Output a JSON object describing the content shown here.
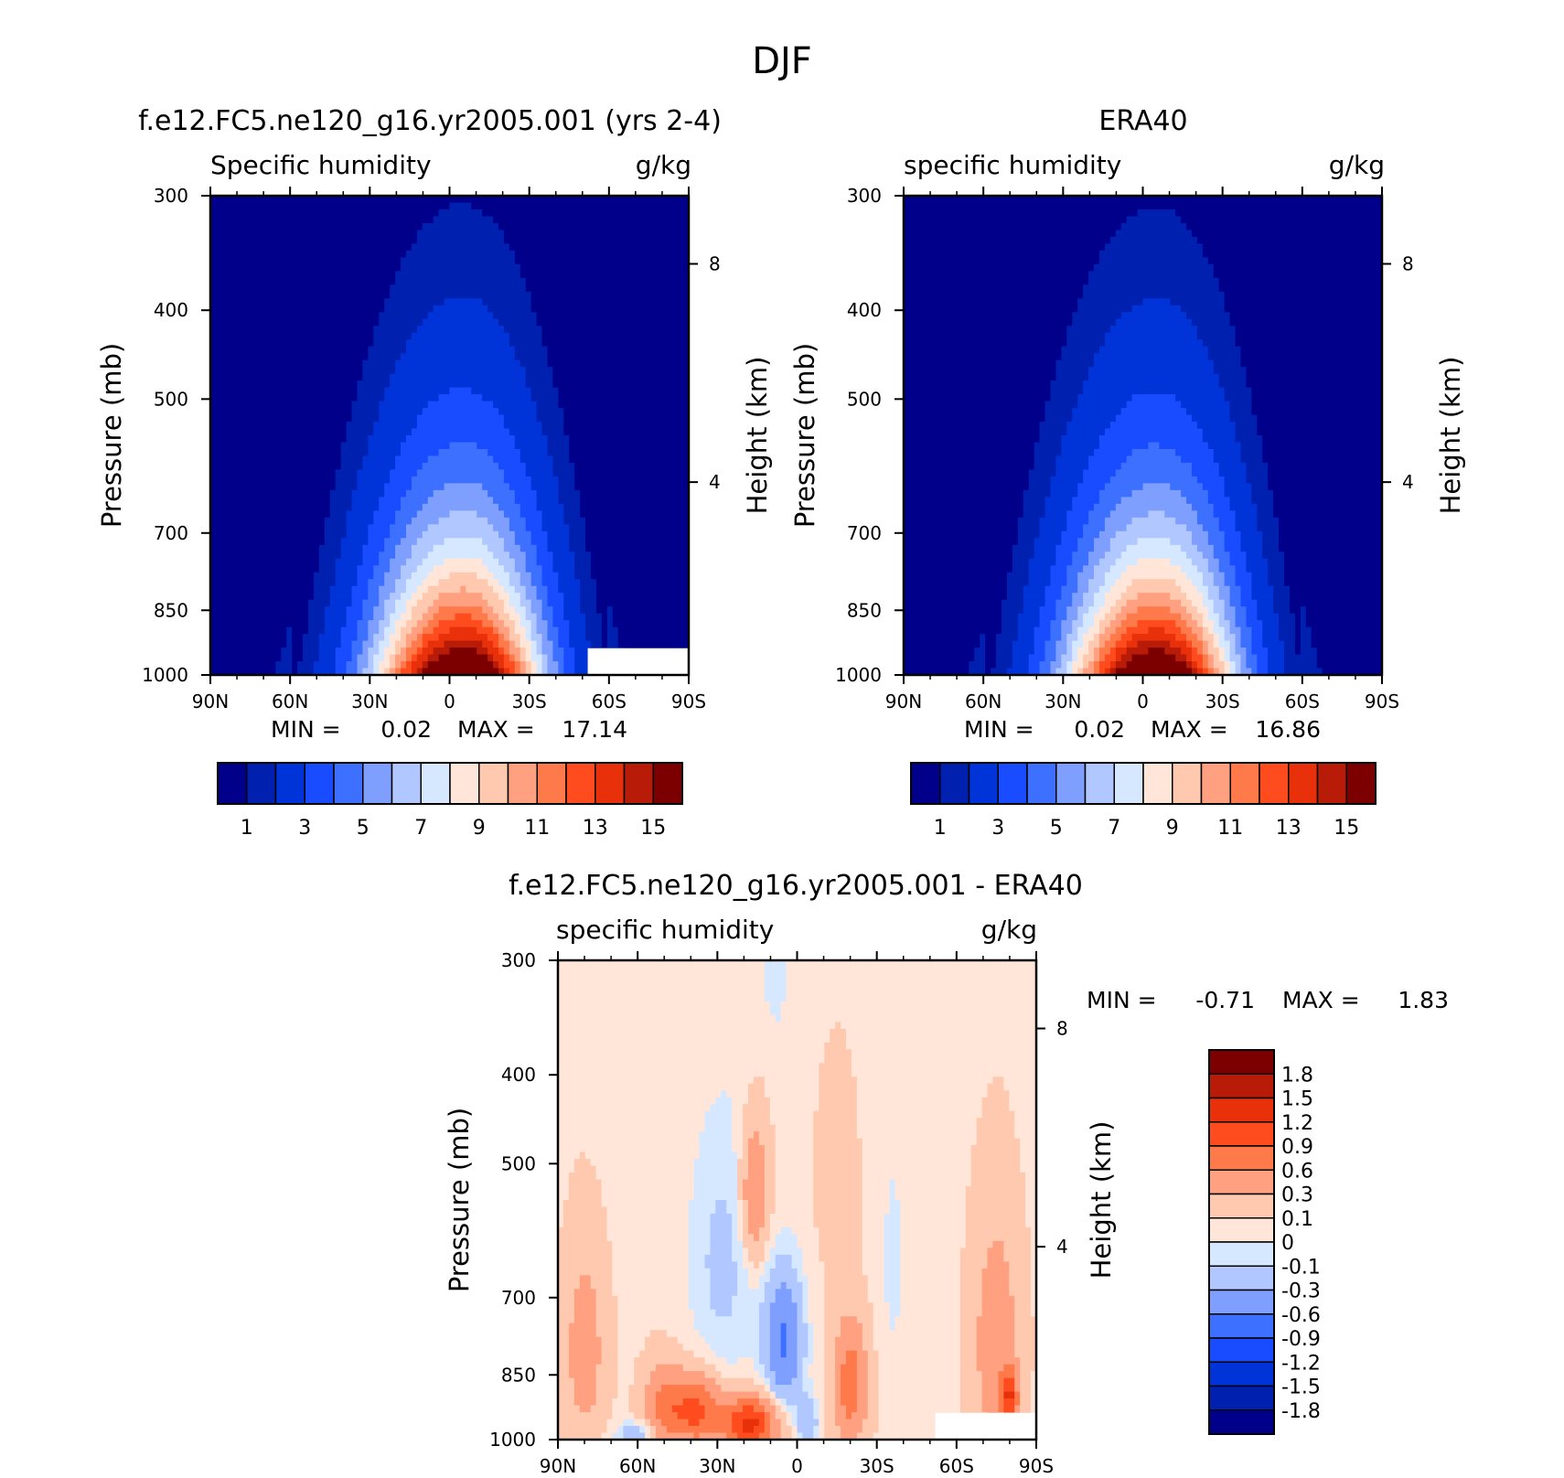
{
  "figure": {
    "season": "DJF"
  },
  "colors": {
    "humidity_scale": [
      "#00008b",
      "#0020b0",
      "#0033d8",
      "#1a4cff",
      "#3d70ff",
      "#7f9fff",
      "#b0c8ff",
      "#d6e8ff",
      "#ffe6d8",
      "#ffc9b0",
      "#ffa080",
      "#ff7a4a",
      "#ff4c1e",
      "#e8300a",
      "#b81c08",
      "#7d0000"
    ],
    "diff_scale": [
      "#00008b",
      "#0020b0",
      "#0033d8",
      "#1a4cff",
      "#3d70ff",
      "#7f9fff",
      "#b0c8ff",
      "#d6e8ff",
      "#ffe6d8",
      "#ffc9b0",
      "#ffa080",
      "#ff7a4a",
      "#ff4c1e",
      "#e8300a",
      "#b81c08",
      "#7d0000"
    ],
    "mask": "#ffffff"
  },
  "chart_data": [
    {
      "id": "model",
      "type": "heatmap",
      "title": "f.e12.FC5.ne120_g16.yr2005.001 (yrs 2-4)",
      "left_label": "Specific humidity",
      "right_label": "g/kg",
      "ylabel": "Pressure (mb)",
      "y2label": "Height (km)",
      "xticks": [
        "90N",
        "60N",
        "30N",
        "0",
        "30S",
        "60S",
        "90S"
      ],
      "xlim": [
        90,
        -90
      ],
      "yticks": [
        "300",
        "400",
        "500",
        "700",
        "850",
        "1000"
      ],
      "ylim": [
        1000,
        300
      ],
      "y_scale": "log",
      "y2ticks": [
        "8",
        "4"
      ],
      "min_label": "MIN =",
      "min_value": "0.02",
      "max_label": "MAX =",
      "max_value": "17.14",
      "cbar_labels": [
        "1",
        "3",
        "5",
        "7",
        "9",
        "11",
        "13",
        "15"
      ],
      "cbar_levels": [
        0.5,
        1,
        2,
        3,
        4,
        5,
        6,
        7,
        8,
        9,
        10,
        11,
        12,
        13,
        14,
        15
      ],
      "peak_value": 17.14,
      "peak_lat": -5,
      "mask": true
    },
    {
      "id": "obs",
      "type": "heatmap",
      "title": "ERA40",
      "left_label": "specific humidity",
      "right_label": "g/kg",
      "ylabel": "Pressure (mb)",
      "y2label": "Height (km)",
      "xticks": [
        "90N",
        "60N",
        "30N",
        "0",
        "30S",
        "60S",
        "90S"
      ],
      "xlim": [
        90,
        -90
      ],
      "yticks": [
        "300",
        "400",
        "500",
        "700",
        "850",
        "1000"
      ],
      "ylim": [
        1000,
        300
      ],
      "y_scale": "log",
      "y2ticks": [
        "8",
        "4"
      ],
      "min_label": "MIN =",
      "min_value": "0.02",
      "max_label": "MAX =",
      "max_value": "16.86",
      "cbar_labels": [
        "1",
        "3",
        "5",
        "7",
        "9",
        "11",
        "13",
        "15"
      ],
      "cbar_levels": [
        0.5,
        1,
        2,
        3,
        4,
        5,
        6,
        7,
        8,
        9,
        10,
        11,
        12,
        13,
        14,
        15
      ],
      "peak_value": 16.86,
      "peak_lat": -5,
      "mask": false
    },
    {
      "id": "diff",
      "type": "heatmap",
      "title": "f.e12.FC5.ne120_g16.yr2005.001 - ERA40",
      "left_label": "specific humidity",
      "right_label": "g/kg",
      "ylabel": "Pressure (mb)",
      "y2label": "Height (km)",
      "xticks": [
        "90N",
        "60N",
        "30N",
        "0",
        "30S",
        "60S",
        "90S"
      ],
      "xlim": [
        90,
        -90
      ],
      "yticks": [
        "300",
        "400",
        "500",
        "700",
        "850",
        "1000"
      ],
      "ylim": [
        1000,
        300
      ],
      "y_scale": "log",
      "y2ticks": [
        "8",
        "4"
      ],
      "min_label": "MIN =",
      "min_value": "-0.71",
      "max_label": "MAX =",
      "max_value": "1.83",
      "cbar_labels": [
        "1.8",
        "1.5",
        "1.2",
        "0.9",
        "0.6",
        "0.3",
        "0.1",
        "0",
        "-0.1",
        "-0.3",
        "-0.6",
        "-0.9",
        "-1.2",
        "-1.5",
        "-1.8"
      ],
      "cbar_levels": [
        -1.8,
        -1.5,
        -1.2,
        -0.9,
        -0.6,
        -0.3,
        -0.1,
        0,
        0.1,
        0.3,
        0.6,
        0.9,
        1.2,
        1.5,
        1.8
      ],
      "mask": true,
      "anomalies": [
        {
          "lat": 5,
          "p": 780,
          "amp": -0.71,
          "wlat": 7,
          "wp": 130
        },
        {
          "lat": 16,
          "p": 540,
          "amp": 0.55,
          "wlat": 5,
          "wp": 90
        },
        {
          "lat": 18,
          "p": 960,
          "amp": 1.25,
          "wlat": 10,
          "wp": 60
        },
        {
          "lat": 28,
          "p": 640,
          "amp": -0.22,
          "wlat": 13,
          "wp": 220
        },
        {
          "lat": 38,
          "p": 930,
          "amp": 0.9,
          "wlat": 9,
          "wp": 80
        },
        {
          "lat": 50,
          "p": 920,
          "amp": 0.6,
          "wlat": 7,
          "wp": 90
        },
        {
          "lat": -4,
          "p": 960,
          "amp": -0.35,
          "wlat": 4,
          "wp": 60
        },
        {
          "lat": -20,
          "p": 870,
          "amp": 0.72,
          "wlat": 6,
          "wp": 130
        },
        {
          "lat": -15,
          "p": 520,
          "amp": 0.2,
          "wlat": 6,
          "wp": 110
        },
        {
          "lat": -36,
          "p": 640,
          "amp": -0.1,
          "wlat": 6,
          "wp": 250
        },
        {
          "lat": -75,
          "p": 790,
          "amp": 0.45,
          "wlat": 8,
          "wp": 220
        },
        {
          "lat": -80,
          "p": 900,
          "amp": 1.0,
          "wlat": 3,
          "wp": 60
        },
        {
          "lat": 80,
          "p": 800,
          "amp": 0.4,
          "wlat": 7,
          "wp": 180
        },
        {
          "lat": 60,
          "p": 985,
          "amp": -0.3,
          "wlat": 8,
          "wp": 30
        },
        {
          "lat": 8,
          "p": 300,
          "amp": -0.15,
          "wlat": 5,
          "wp": 60
        }
      ]
    }
  ]
}
